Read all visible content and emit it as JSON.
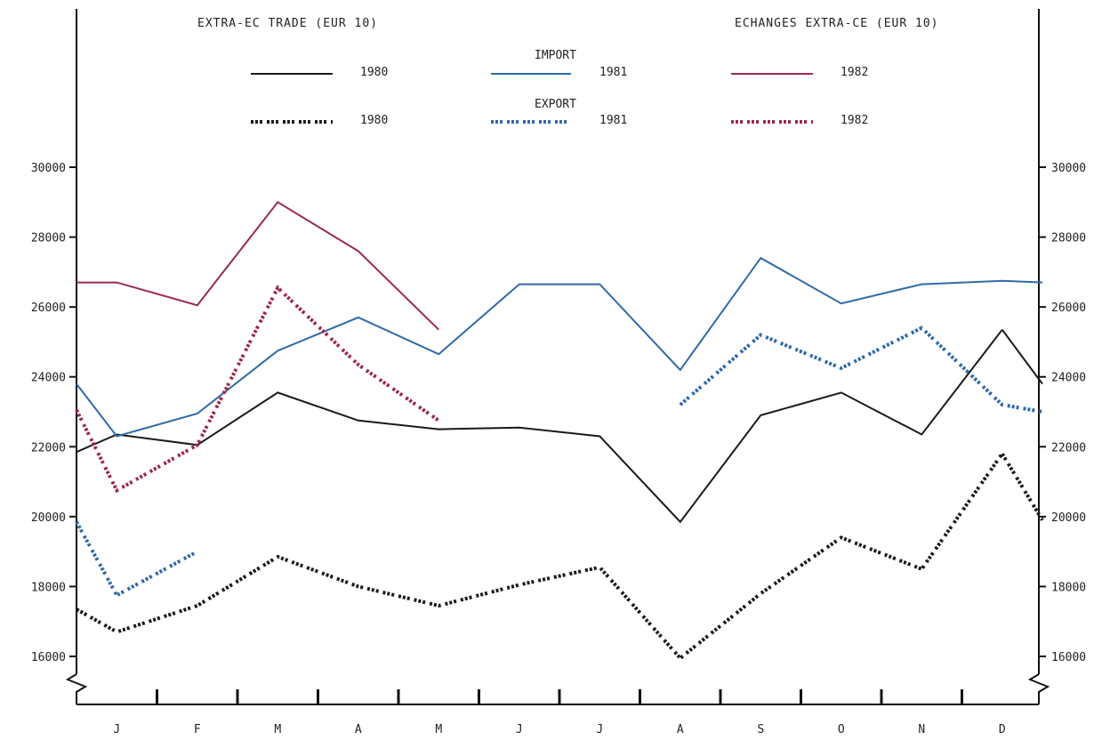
{
  "chart_data": {
    "type": "line",
    "title_left": "EXTRA-EC TRADE (EUR 10)",
    "title_right": "ECHANGES EXTRA-CE (EUR 10)",
    "legend": {
      "import_label": "IMPORT",
      "export_label": "EXPORT",
      "years": [
        "1980",
        "1981",
        "1982"
      ]
    },
    "categories": [
      "J",
      "F",
      "M",
      "A",
      "M",
      "J",
      "J",
      "A",
      "S",
      "O",
      "N",
      "D"
    ],
    "y_ticks": [
      16000,
      18000,
      20000,
      22000,
      24000,
      26000,
      28000,
      30000
    ],
    "ylim": [
      15000,
      32000
    ],
    "grid": false,
    "colors": {
      "1980": "#1a1a1a",
      "1981": "#2f6aa8",
      "1982": "#9a2a48"
    },
    "series": [
      {
        "name": "IMPORT 1980",
        "kind": "import",
        "year": "1980",
        "x": [
          0.5,
          1,
          2,
          3,
          4,
          5,
          6,
          7,
          8,
          9,
          10,
          11,
          12
        ],
        "values": [
          21850,
          22350,
          22050,
          23550,
          22750,
          22500,
          22550,
          22300,
          19850,
          22900,
          23550,
          22350,
          25350
        ]
      },
      {
        "name": "IMPORT 1980 (Dec-Jan)",
        "kind": "import",
        "year": "1980",
        "x": [
          12,
          12.5
        ],
        "values": [
          25350,
          23800
        ]
      },
      {
        "name": "IMPORT 1981",
        "kind": "import",
        "year": "1981",
        "x": [
          0.5,
          1,
          2,
          3,
          4,
          5,
          6,
          7,
          8,
          9,
          10,
          11,
          12,
          12.5
        ],
        "values": [
          23800,
          22300,
          22950,
          24750,
          25700,
          24650,
          26650,
          26650,
          24200,
          27400,
          26100,
          26650,
          26750,
          26700
        ]
      },
      {
        "name": "IMPORT 1982",
        "kind": "import",
        "year": "1982",
        "x": [
          0.5,
          1,
          2,
          3,
          4,
          5
        ],
        "values": [
          26700,
          26700,
          26050,
          29000,
          27600,
          25350
        ]
      },
      {
        "name": "EXPORT 1980",
        "kind": "export",
        "year": "1980",
        "x": [
          0.5,
          1,
          2,
          3,
          4,
          5,
          6,
          7,
          8,
          9,
          10,
          11,
          12,
          12.5
        ],
        "values": [
          17350,
          16700,
          17450,
          18850,
          18000,
          17450,
          18050,
          18550,
          15950,
          17800,
          19400,
          18500,
          21800,
          19900
        ]
      },
      {
        "name": "EXPORT 1981",
        "kind": "export",
        "year": "1981",
        "x": [
          0.5,
          1,
          2
        ],
        "values": [
          19850,
          17750,
          19000
        ]
      },
      {
        "name": "EXPORT 1981 (Sep-Dec)",
        "kind": "export",
        "year": "1981",
        "x": [
          8,
          9,
          10,
          11,
          12,
          12.5
        ],
        "values": [
          23200,
          25200,
          24250,
          25400,
          23200,
          23000
        ]
      },
      {
        "name": "EXPORT 1982",
        "kind": "export",
        "year": "1982",
        "x": [
          0.5,
          1,
          2,
          3,
          4,
          5
        ],
        "values": [
          23050,
          20750,
          22050,
          26550,
          24350,
          22750
        ]
      }
    ]
  }
}
